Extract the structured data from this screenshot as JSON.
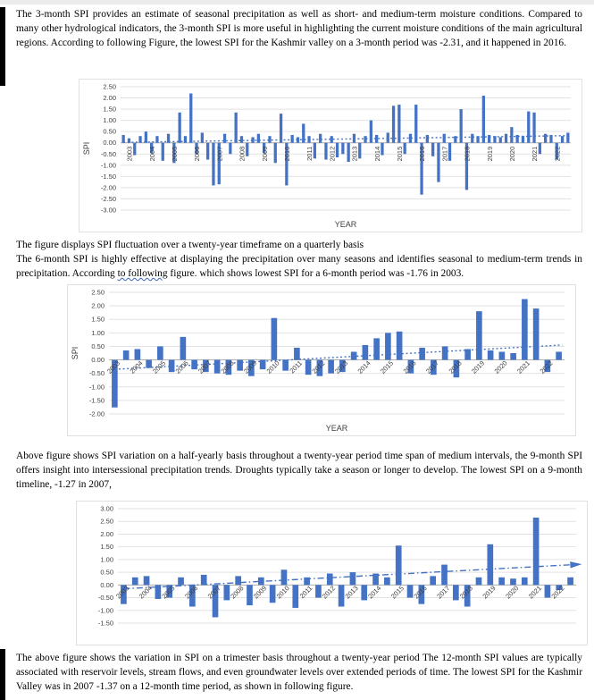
{
  "doc": {
    "paragraph1": "The 3-month SPI provides an estimate of seasonal precipitation as well as short- and medium-term moisture conditions. Compared to many other hydrological indicators, the 3-month SPI is more useful in highlighting the current moisture conditions of the main agricultural regions. According to following Figure, the lowest SPI for the Kashmir valley on a 3-month period was -2.31, and it happened in 2016.",
    "caption1": "The figure displays SPI fluctuation over a twenty-year timeframe on a quarterly basis",
    "paragraph2": {
      "pre": "The 6-month SPI is highly effective at displaying the precipitation over many seasons and identifies seasonal to medium-term trends in precipitation. According ",
      "squiggle": "to following",
      "post": " figure. which shows lowest SPI for a 6-month period was -1.76 in 2003."
    },
    "paragraph3": "Above figure shows SPI variation on a half-yearly basis throughout a twenty-year period time span of medium intervals, the 9-month SPI offers insight into intersessional precipitation trends. Droughts typically take a season or longer to develop. The lowest SPI on a 9-month timeline, -1.27 in 2007,",
    "paragraph4": "The above figure  shows the  variation in SPI on a trimester basis throughout a twenty-year period The 12-month SPI values are typically associated with reservoir levels, stream flows, and even groundwater levels over extended periods of time. The lowest SPI for the Kashmir Valley was in 2007  -1.37 on a 12-month time period, as shown in following figure."
  },
  "chart_data": [
    {
      "id": "spi-3month-quarterly",
      "type": "bar",
      "ylabel": "SPI",
      "xlabel": "YEAR",
      "ylim": [
        -3.0,
        2.5
      ],
      "ytick_step": 0.5,
      "bar_color": "#4472C4",
      "grid": true,
      "label_rotation": -90,
      "bars_per_year": 4,
      "categories": [
        "2003",
        "2004",
        "2005",
        "2006",
        "2007",
        "2008",
        "2009",
        "2010",
        "2011",
        "2012",
        "2013",
        "2014",
        "2015",
        "2016",
        "2017",
        "2018",
        "2019",
        "2020",
        "2021",
        "2022"
      ],
      "values": [
        0.35,
        0.2,
        -0.55,
        0.3,
        0.5,
        -0.45,
        0.3,
        -0.8,
        0.4,
        -0.9,
        1.35,
        0.3,
        2.2,
        -0.5,
        0.45,
        -0.75,
        -1.9,
        -1.85,
        0.4,
        -0.5,
        1.35,
        0.3,
        -0.6,
        0.25,
        0.4,
        -0.45,
        0.3,
        -0.9,
        1.3,
        -1.9,
        0.35,
        0.25,
        0.85,
        0.3,
        -0.7,
        0.4,
        -0.75,
        0.3,
        -0.65,
        -0.5,
        -0.85,
        0.4,
        -0.7,
        0.3,
        1.0,
        0.35,
        -0.55,
        0.45,
        1.65,
        1.7,
        -0.5,
        0.4,
        1.7,
        -2.31,
        0.35,
        -0.6,
        -1.75,
        0.4,
        -0.8,
        0.3,
        1.5,
        -2.1,
        0.4,
        0.3,
        2.1,
        0.35,
        0.3,
        0.25,
        0.4,
        0.7,
        0.35,
        0.3,
        1.4,
        1.35,
        -0.5,
        0.4,
        0.35,
        -0.75,
        0.3,
        0.45
      ],
      "trend": {
        "start": 0.02,
        "end": 0.32,
        "style": "dotted",
        "arrow": false
      }
    },
    {
      "id": "spi-6month-halfyearly",
      "type": "bar",
      "ylabel": "SPI",
      "xlabel": "YEAR",
      "ylim": [
        -2.0,
        2.5
      ],
      "ytick_step": 0.5,
      "bar_color": "#4472C4",
      "grid": true,
      "label_rotation": -45,
      "bars_per_year": 2,
      "categories": [
        "2003",
        "2004",
        "2005",
        "2006",
        "2007",
        "2008",
        "2009",
        "2010",
        "2011",
        "2012",
        "2013",
        "2014",
        "2015",
        "2016",
        "2017",
        "2018",
        "2019",
        "2020",
        "2021",
        "2022"
      ],
      "values": [
        -1.76,
        0.35,
        0.4,
        -0.3,
        0.5,
        -0.45,
        0.85,
        -0.35,
        -0.45,
        -0.5,
        -0.55,
        -0.4,
        -0.6,
        -0.35,
        1.55,
        -0.4,
        0.45,
        -0.55,
        -0.6,
        -0.5,
        -0.45,
        0.3,
        0.55,
        0.8,
        1.0,
        1.05,
        -0.5,
        0.45,
        -0.55,
        0.5,
        -0.65,
        0.4,
        1.8,
        0.35,
        0.3,
        0.25,
        2.25,
        1.9,
        -0.45,
        0.3
      ],
      "trend": {
        "start": -0.35,
        "end": 0.55,
        "style": "dotted",
        "arrow": false
      }
    },
    {
      "id": "spi-9month-halfyearly",
      "type": "bar",
      "ylabel": "",
      "xlabel": "",
      "ylim": [
        -1.5,
        3.0
      ],
      "ytick_step": 0.5,
      "bar_color": "#4472C4",
      "grid": true,
      "label_rotation": -45,
      "bars_per_year": 2,
      "categories": [
        "2003",
        "2004",
        "2005",
        "2006",
        "2007",
        "2008",
        "2009",
        "2010",
        "2011",
        "2012",
        "2013",
        "2014",
        "2015",
        "2016",
        "2017",
        "2018",
        "2019",
        "2020",
        "2021",
        "2022"
      ],
      "values": [
        -0.75,
        0.3,
        0.35,
        -0.55,
        -0.5,
        0.3,
        -0.85,
        0.4,
        -1.27,
        -0.6,
        0.35,
        -0.8,
        0.3,
        -0.7,
        0.6,
        -0.9,
        0.3,
        -0.5,
        0.45,
        -0.85,
        0.5,
        -0.6,
        0.45,
        0.3,
        1.55,
        -0.5,
        -0.75,
        0.35,
        0.8,
        -0.6,
        -0.85,
        0.3,
        1.6,
        0.3,
        0.25,
        0.3,
        2.65,
        -0.5,
        -0.2,
        0.3
      ],
      "trend": {
        "start": -0.15,
        "end": 0.8,
        "style": "dashdot",
        "arrow": true
      }
    }
  ]
}
